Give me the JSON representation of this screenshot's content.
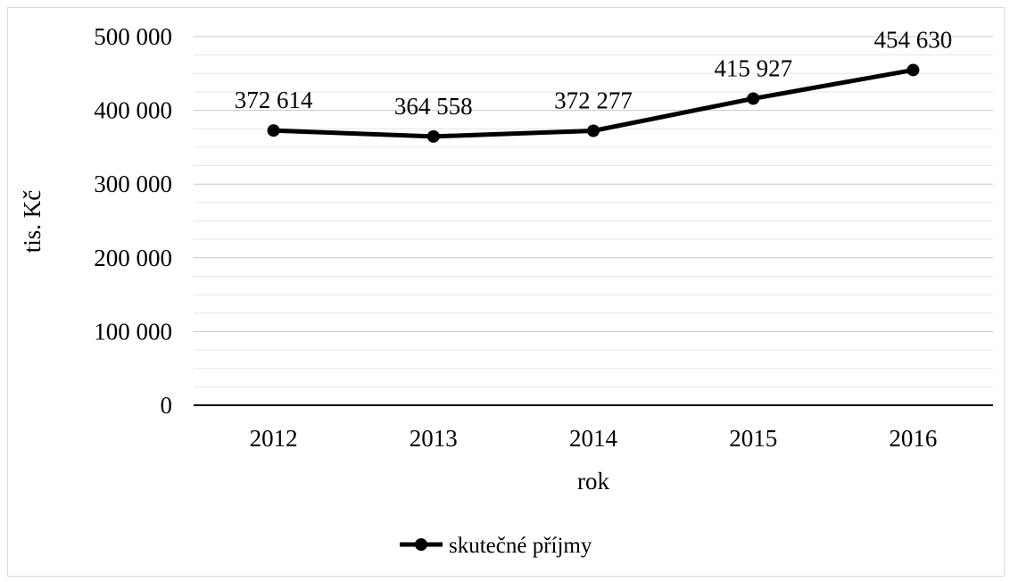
{
  "chart_data": {
    "type": "line",
    "title": "",
    "xlabel": "rok",
    "ylabel": "tis. Kč",
    "categories": [
      "2012",
      "2013",
      "2014",
      "2015",
      "2016"
    ],
    "series": [
      {
        "name": "skutečné příjmy",
        "values": [
          372614,
          364558,
          372277,
          415927,
          454630
        ],
        "data_labels": [
          "372 614",
          "364 558",
          "372 277",
          "415 927",
          "454 630"
        ],
        "color": "#000000",
        "marker": "circle"
      }
    ],
    "ylim": [
      0,
      500000
    ],
    "y_major_ticks": [
      0,
      100000,
      200000,
      300000,
      400000,
      500000
    ],
    "y_tick_labels": [
      "0",
      "100 000",
      "200 000",
      "300 000",
      "400 000",
      "500 000"
    ],
    "y_minor_step": 25000,
    "grid": true,
    "legend_position": "bottom"
  }
}
